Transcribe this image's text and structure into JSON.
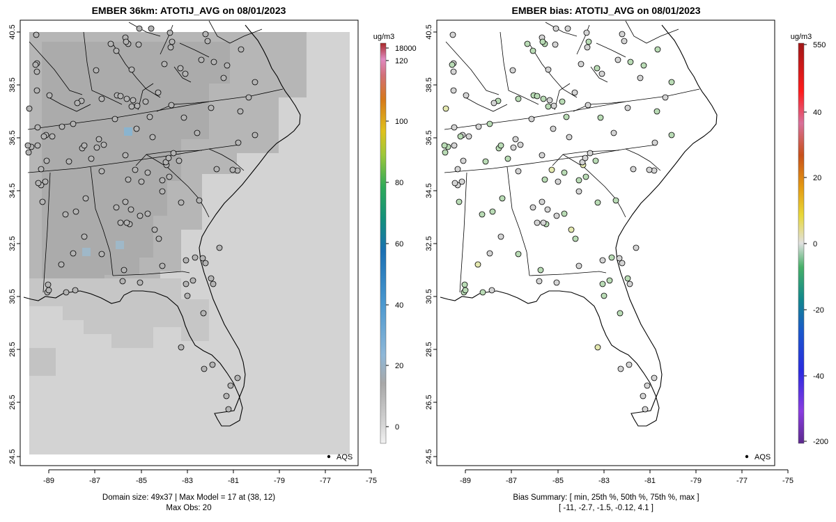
{
  "left_panel": {
    "title": "EMBER 36km: ATOTIJ_AVG on 08/01/2023",
    "x_ticks": [
      "-89",
      "-87",
      "-85",
      "-83",
      "-81",
      "-79",
      "-77",
      "-75"
    ],
    "y_ticks": [
      "40.5",
      "38.5",
      "36.5",
      "34.5",
      "32.5",
      "30.5",
      "28.5",
      "26.5",
      "24.5"
    ],
    "legend_label": "AQS",
    "caption_line1": "Domain size: 49x37 | Max Model = 17 at (38, 12)",
    "caption_line2": "Max Obs: 20",
    "colorbar": {
      "unit": "ug/m3",
      "ticks": [
        "18000",
        "120",
        "100",
        "80",
        "60",
        "40",
        "20",
        "0"
      ]
    }
  },
  "right_panel": {
    "title": "EMBER bias: ATOTIJ_AVG on 08/01/2023",
    "x_ticks": [
      "-89",
      "-87",
      "-85",
      "-83",
      "-81",
      "-79",
      "-77",
      "-75"
    ],
    "y_ticks": [
      "40.5",
      "38.5",
      "36.5",
      "34.5",
      "32.5",
      "30.5",
      "28.5",
      "26.5",
      "24.5"
    ],
    "legend_label": "AQS",
    "caption_line1": "Bias Summary: [ min, 25th %, 50th %, 75th %, max ]",
    "caption_line2": "[ -11,   -2.7,   -1.5,   -0.12,   4.1 ]",
    "colorbar": {
      "unit": "ug/m3",
      "ticks": [
        "550",
        "40",
        "20",
        "0",
        "-20",
        "-40",
        "-200"
      ]
    }
  },
  "colors": {
    "model_background": "#d3d3d3",
    "model_mid": "#b8b8b8",
    "model_dark": "#a9a9a9",
    "model_blue": "#8ab4cf",
    "marker_outline": "#000000",
    "bias_marker_default": "#d4d4d4",
    "bias_marker_green": "#b9dbb5"
  }
}
